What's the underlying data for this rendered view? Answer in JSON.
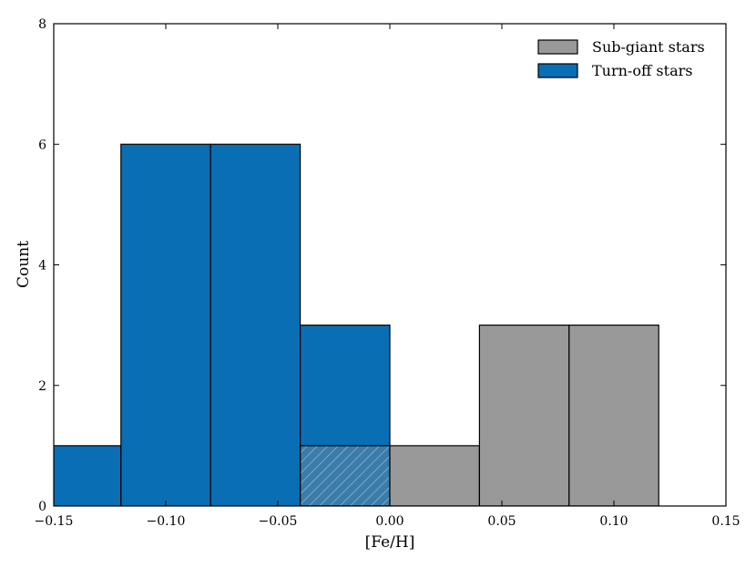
{
  "chart_data": {
    "type": "bar",
    "xlabel": "[Fe/H]",
    "ylabel": "Count",
    "xlim": [
      -0.15,
      0.15
    ],
    "ylim": [
      0,
      8
    ],
    "x_ticks": [
      -0.15,
      -0.1,
      -0.05,
      0.0,
      0.05,
      0.1,
      0.15
    ],
    "x_tick_labels": [
      "−0.15",
      "−0.10",
      "−0.05",
      "0.00",
      "0.05",
      "0.10",
      "0.15"
    ],
    "y_ticks": [
      0,
      2,
      4,
      6,
      8
    ],
    "y_tick_labels": [
      "0",
      "2",
      "4",
      "6",
      "8"
    ],
    "legend": {
      "position": "top-right",
      "entries": [
        {
          "label": "Sub-giant stars",
          "color": "#999999"
        },
        {
          "label": "Turn-off stars",
          "color": "#0a6eb4"
        }
      ]
    },
    "overlap_hatch_color": "#ffffff",
    "series": [
      {
        "name": "Sub-giant stars",
        "color": "#999999",
        "bins": [
          {
            "x0": -0.04,
            "x1": 0.0,
            "count": 1
          },
          {
            "x0": 0.0,
            "x1": 0.04,
            "count": 1
          },
          {
            "x0": 0.04,
            "x1": 0.08,
            "count": 3
          },
          {
            "x0": 0.08,
            "x1": 0.12,
            "count": 3
          }
        ]
      },
      {
        "name": "Turn-off stars",
        "color": "#0a6eb4",
        "bins": [
          {
            "x0": -0.16,
            "x1": -0.12,
            "count": 1
          },
          {
            "x0": -0.12,
            "x1": -0.08,
            "count": 6
          },
          {
            "x0": -0.08,
            "x1": -0.04,
            "count": 6
          },
          {
            "x0": -0.04,
            "x1": 0.0,
            "count": 3
          }
        ]
      }
    ]
  }
}
